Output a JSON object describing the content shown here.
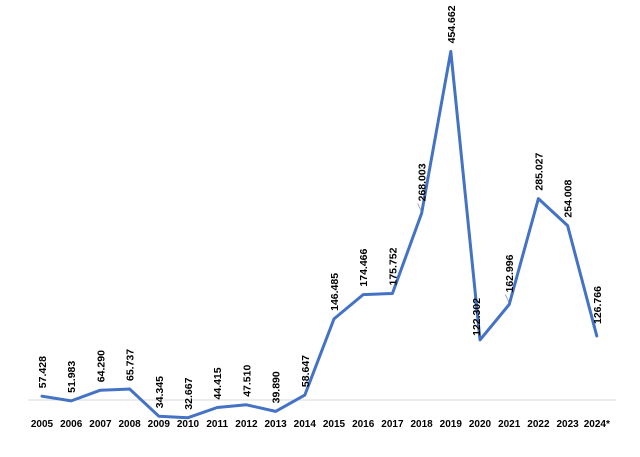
{
  "chart_data": {
    "type": "line",
    "title": "",
    "xlabel": "",
    "ylabel": "",
    "x": [
      "2005",
      "2006",
      "2007",
      "2008",
      "2009",
      "2010",
      "2011",
      "2012",
      "2013",
      "2014",
      "2015",
      "2016",
      "2017",
      "2018",
      "2019",
      "2020",
      "2021",
      "2022",
      "2023",
      "2024*"
    ],
    "series": [
      {
        "values": [
          57428,
          51983,
          64290,
          65737,
          34345,
          32667,
          44415,
          47510,
          39890,
          58647,
          146485,
          174466,
          175752,
          268003,
          454662,
          122302,
          162996,
          285027,
          254008,
          126766
        ],
        "labels": [
          "57.428",
          "51.983",
          "64.290",
          "65.737",
          "34.345",
          "32.667",
          "44.415",
          "47.510",
          "39.890",
          "58.647",
          "146.485",
          "174.466",
          "175.752",
          "268.003",
          "454.662",
          "122.302",
          "162.996",
          "285.027",
          "254.008",
          "126.766"
        ],
        "color": "#4472c4"
      }
    ],
    "ylim": [
      0,
      460000
    ],
    "grid": false,
    "legend": "none",
    "label_color": "#000000",
    "leader_color": "#a6a6a6"
  }
}
